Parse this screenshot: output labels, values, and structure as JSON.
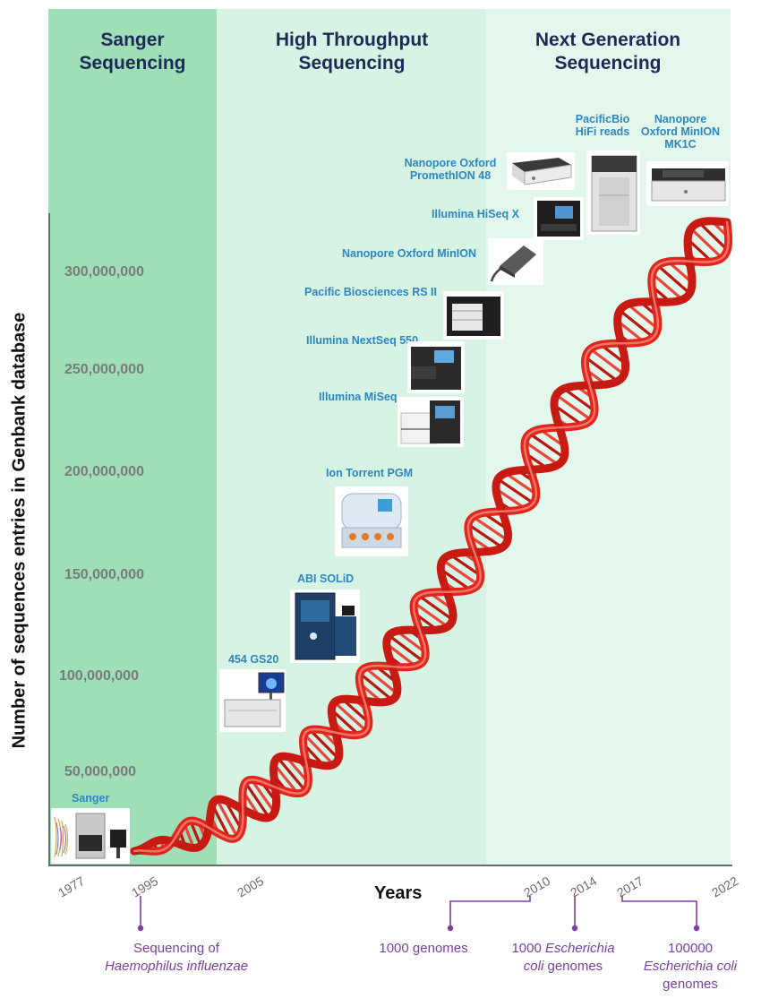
{
  "eras": [
    {
      "title_line1": "Sanger",
      "title_line2": "Sequencing",
      "color": "#9edfb8"
    },
    {
      "title_line1": "High Throughput",
      "title_line2": "Sequencing",
      "color": "#d6f3e3"
    },
    {
      "title_line1": "Next Generation",
      "title_line2": "Sequencing",
      "color": "#e4f7ec"
    }
  ],
  "y_axis": {
    "label": "Number of sequences entries in Genbank database",
    "ticks": [
      "300,000,000",
      "250,000,000",
      "200,000,000",
      "150,000,000",
      "100,000,000",
      "50,000,000"
    ]
  },
  "x_axis": {
    "label": "Years",
    "years": [
      "1977",
      "1995",
      "2005",
      "2010",
      "2014",
      "2017",
      "2022"
    ]
  },
  "instruments": [
    {
      "label": "Sanger",
      "icon": "sanger-sequencer-icon"
    },
    {
      "label": "454 GS20",
      "icon": "454-gs20-icon"
    },
    {
      "label": "ABI SOLiD",
      "icon": "abi-solid-icon"
    },
    {
      "label": "Ion Torrent PGM",
      "icon": "ion-torrent-icon"
    },
    {
      "label": "Illumina MiSeq",
      "icon": "illumina-miseq-icon"
    },
    {
      "label": "Illumina NextSeq 550",
      "icon": "illumina-nextseq-icon"
    },
    {
      "label": "Pacific Biosciences RS II",
      "icon": "pacbio-rs2-icon"
    },
    {
      "label": "Nanopore Oxford MinION",
      "icon": "minion-icon"
    },
    {
      "label": "Illumina HiSeq X",
      "icon": "hiseq-x-icon"
    },
    {
      "label_line1": "Nanopore Oxford",
      "label_line2": "PromethION 48",
      "icon": "promethion-icon"
    },
    {
      "label_line1": "PacificBio",
      "label_line2": "HiFi reads",
      "icon": "pacbio-hifi-icon"
    },
    {
      "label_line1": "Nanopore",
      "label_line2": "Oxford MinION",
      "label_line3": "MK1C",
      "icon": "minion-mk1c-icon"
    }
  ],
  "annotations": [
    {
      "line1": "Sequencing  of",
      "line2": "Haemophilus influenzae"
    },
    {
      "line1": "1000 genomes"
    },
    {
      "line1_a": "1000 ",
      "line1_b": "Escherichia",
      "line2_a": "coli",
      "line2_b": " genomes"
    },
    {
      "line1": "100000",
      "line2": "Escherichia coli",
      "line3": "genomes"
    }
  ],
  "colors": {
    "dna": "#e0261b",
    "annotation": "#7b3fa0",
    "instrument_label": "#2e86c1",
    "era_title": "#1b2a57"
  }
}
